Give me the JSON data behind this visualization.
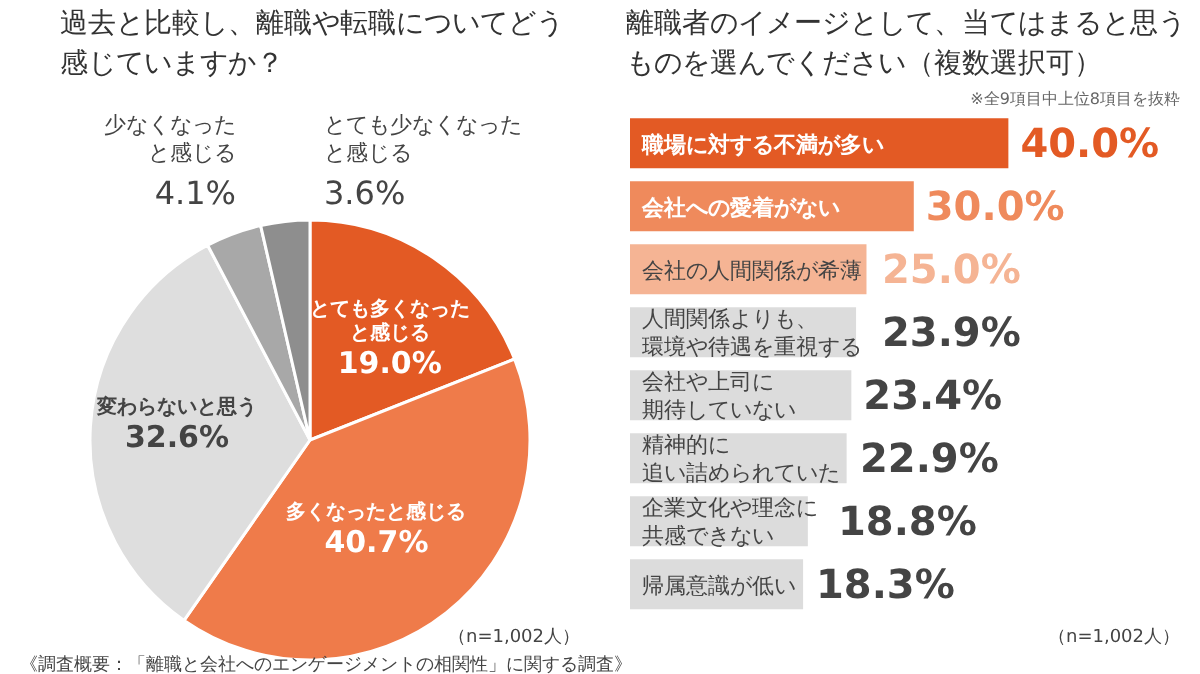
{
  "chart_data": [
    {
      "type": "pie",
      "title": "過去と比較し、離職や転職についてどう感じていますか？",
      "categories": [
        "とても多くなったと感じる",
        "多くなったと感じる",
        "変わらないと思う",
        "少なくなったと感じる",
        "とても少なくなったと感じる"
      ],
      "values": [
        19.0,
        40.7,
        32.6,
        4.1,
        3.6
      ],
      "value_labels": [
        "19.0%",
        "40.7%",
        "32.6%",
        "4.1%",
        "3.6%"
      ],
      "colors": [
        "#e35a24",
        "#ef7b4a",
        "#dedede",
        "#a8a8a8",
        "#8e8e8e"
      ],
      "annotations": [
        "（n=1,002人）",
        "《調査概要：「離職と会社へのエンゲージメントの相関性」に関する調査》"
      ]
    },
    {
      "type": "bar",
      "orientation": "horizontal",
      "title": "離職者のイメージとして、当てはまると思うものを選んでください（複数選択可）",
      "categories": [
        "職場に対する不満が多い",
        "会社への愛着がない",
        "会社の人間関係が希薄",
        "人間関係よりも、環境や待遇を重視する",
        "会社や上司に期待していない",
        "精神的に追い詰められていた",
        "企業文化や理念に共感できない",
        "帰属意識が低い"
      ],
      "values": [
        40.0,
        30.0,
        25.0,
        23.9,
        23.4,
        22.9,
        18.8,
        18.3
      ],
      "value_labels": [
        "40.0%",
        "30.0%",
        "25.0%",
        "23.9%",
        "23.4%",
        "22.9%",
        "18.8%",
        "18.3%"
      ],
      "colors": [
        "#e35a24",
        "#ef8a5c",
        "#f5b494",
        "#dcdcdc",
        "#dcdcdc",
        "#dcdcdc",
        "#dcdcdc",
        "#dcdcdc"
      ],
      "annotations": [
        "※全9項目中上位8項目を抜粋",
        "（n=1,002人）"
      ]
    }
  ]
}
